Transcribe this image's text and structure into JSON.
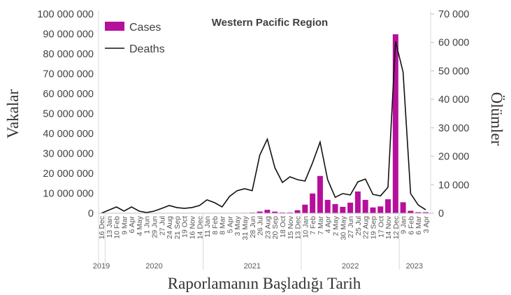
{
  "chart_data": {
    "type": "bar+line",
    "title": "Western Pacific Region",
    "xlabel": "Raporlamanın Başladığı Tarih",
    "ylabel": "Vakalar",
    "y2label": "Ölümler",
    "ylim": [
      0,
      100000000
    ],
    "y2lim": [
      0,
      70000
    ],
    "yticks": [
      "0",
      "10 000 000",
      "20 000 000",
      "30 000 000",
      "40 000 000",
      "50 000 000",
      "60 000 000",
      "70 000 000",
      "80 000 000",
      "90 000 000",
      "100 000 000"
    ],
    "y2ticks": [
      "0",
      "10 000",
      "20 000",
      "30 000",
      "40 000",
      "50 000",
      "60 000",
      "70 000"
    ],
    "legend": {
      "position": "top-left",
      "entries": [
        "Cases",
        "Deaths"
      ]
    },
    "colors": {
      "cases": "#b5109b",
      "deaths": "#111111"
    },
    "years": [
      {
        "label": "2019",
        "start": 0,
        "end": 0
      },
      {
        "label": "2020",
        "start": 1,
        "end": 13
      },
      {
        "label": "2021",
        "start": 14,
        "end": 26
      },
      {
        "label": "2022",
        "start": 27,
        "end": 39
      },
      {
        "label": "2023",
        "start": 40,
        "end": 43
      }
    ],
    "categories": [
      "16 Dec",
      "13 Jan",
      "10 Feb",
      "9 Mar",
      "6 Apr",
      "4 May",
      "1 Jun",
      "29 Jun",
      "27 Jul",
      "24 Aug",
      "21 Sep",
      "19 Oct",
      "16 Nov",
      "14 Dec",
      "11 Jan",
      "8 Feb",
      "8 Mar",
      "5 Apr",
      "3 May",
      "31 May",
      "28 Jun",
      "26 Jul",
      "23 Aug",
      "20 Sep",
      "18 Oct",
      "15 Nov",
      "13 Dec",
      "10 Jan",
      "7 Feb",
      "7 Mar",
      "4 Apr",
      "2 May",
      "30 May",
      "27 Jun",
      "25 Jul",
      "22 Aug",
      "19 Sep",
      "17 Oct",
      "14 Nov",
      "12 Dec",
      "9 Jan",
      "6 Feb",
      "6 Mar",
      "3 Apr"
    ],
    "series": [
      {
        "name": "Cases",
        "type": "bar",
        "axis": "left",
        "values": [
          0,
          20000,
          60000,
          40000,
          30000,
          10000,
          10000,
          20000,
          30000,
          40000,
          30000,
          30000,
          40000,
          60000,
          90000,
          70000,
          60000,
          90000,
          140000,
          200000,
          300000,
          850000,
          1700000,
          800000,
          350000,
          350000,
          1500000,
          4300000,
          9900000,
          18700000,
          6700000,
          4600000,
          3200000,
          5300000,
          10900000,
          6700000,
          2900000,
          3400000,
          7000000,
          89800000,
          5500000,
          1200000,
          500000,
          500000
        ]
      },
      {
        "name": "Deaths",
        "type": "line",
        "axis": "right",
        "values": [
          0,
          1100,
          2200,
          740,
          2200,
          740,
          250,
          740,
          1700,
          2700,
          2000,
          1700,
          2000,
          2700,
          4700,
          3700,
          2200,
          5900,
          7900,
          8600,
          7900,
          20400,
          26000,
          16000,
          10800,
          12800,
          11800,
          11300,
          17700,
          25000,
          11800,
          5600,
          6900,
          6400,
          11000,
          12000,
          6600,
          6100,
          9100,
          60400,
          49600,
          6900,
          2900,
          1200
        ]
      }
    ]
  }
}
